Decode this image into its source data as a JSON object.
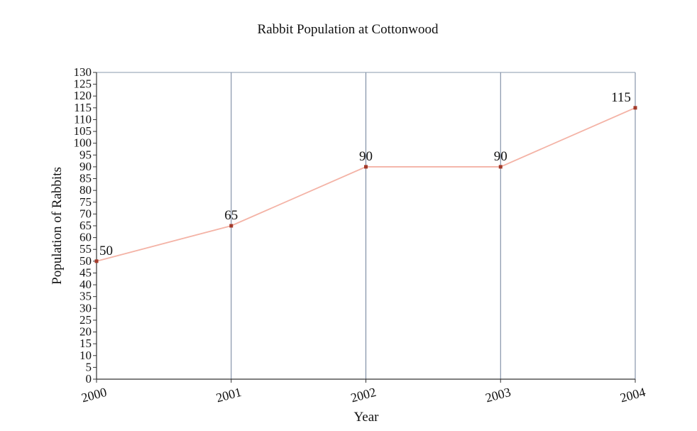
{
  "chart_data": {
    "type": "line",
    "title": "Rabbit Population at Cottonwood",
    "xlabel": "Year",
    "ylabel": "Population of Rabbits",
    "categories": [
      "2000",
      "2001",
      "2002",
      "2003",
      "2004"
    ],
    "series": [
      {
        "values": [
          50,
          65,
          90,
          90,
          115
        ],
        "color": "#f4b3a6",
        "marker_color": "#a33a2a"
      }
    ],
    "data_labels": [
      "50",
      "65",
      "90",
      "90",
      "115"
    ],
    "ylim": [
      0,
      130
    ],
    "yticks": [
      0,
      5,
      10,
      15,
      20,
      25,
      30,
      35,
      40,
      45,
      50,
      55,
      60,
      65,
      70,
      75,
      80,
      85,
      90,
      95,
      100,
      105,
      110,
      115,
      120,
      125,
      130
    ],
    "grid": "vertical",
    "grid_color": "#6f7f99",
    "axis_color": "#333333",
    "frame_color": "#8a98ad"
  }
}
